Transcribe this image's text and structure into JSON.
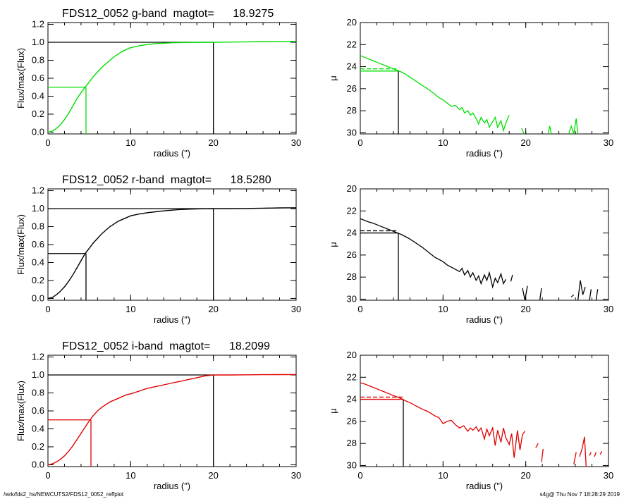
{
  "footer": {
    "left": "/wrk/fds2_hs/NEWCUTS2/FDS12_0052_reffplot",
    "right": "s4g@  Thu Nov  7 18:28:29 2019"
  },
  "chart_data": [
    {
      "id": "g-growth",
      "type": "line",
      "title": "FDS12_0052 g-band  magtot=      18.9275",
      "xlabel": "radius (\")",
      "ylabel": "Flux/max(Flux)",
      "xlim": [
        0,
        30
      ],
      "ylim": [
        -0.02,
        1.22
      ],
      "xticks": [
        "0",
        "10",
        "20",
        "30"
      ],
      "yticks": [
        "0.0",
        "0.2",
        "0.4",
        "0.6",
        "0.8",
        "1.0",
        "1.2"
      ],
      "color": "#00e000",
      "x": [
        0,
        0.5,
        1,
        1.5,
        2,
        2.5,
        3,
        3.5,
        4,
        4.5,
        5,
        5.5,
        6,
        6.5,
        7,
        7.5,
        8,
        8.5,
        9,
        9.5,
        10,
        11,
        12,
        13,
        14,
        15,
        16,
        17,
        18,
        19,
        20,
        22,
        24,
        26,
        28,
        30
      ],
      "y": [
        0,
        0.01,
        0.04,
        0.08,
        0.14,
        0.21,
        0.29,
        0.37,
        0.44,
        0.5,
        0.56,
        0.62,
        0.67,
        0.72,
        0.76,
        0.8,
        0.84,
        0.87,
        0.9,
        0.92,
        0.94,
        0.96,
        0.975,
        0.985,
        0.99,
        0.995,
        0.997,
        0.998,
        0.999,
        1.0,
        1.0,
        1.003,
        1.005,
        1.008,
        1.01,
        1.01
      ],
      "r_total": 20,
      "r_half": 4.6,
      "half_level": 0.5,
      "total_level": 1.0
    },
    {
      "id": "g-mu",
      "type": "line",
      "xlabel": "radius (\")",
      "ylabel": "μ",
      "xlim": [
        0,
        30
      ],
      "ylim": [
        30.1,
        20
      ],
      "xticks": [
        "0",
        "10",
        "20",
        "30"
      ],
      "yticks": [
        "20",
        "22",
        "24",
        "26",
        "28",
        "30"
      ],
      "color": "#00e000",
      "segments": [
        {
          "x": [
            0,
            0.5,
            1,
            1.5,
            2,
            2.5,
            3,
            3.5,
            4,
            4.5,
            5,
            5.5,
            6,
            6.5,
            7,
            7.5,
            8,
            8.5,
            9,
            9.5,
            10,
            10.5,
            11,
            11.5,
            12,
            12.3,
            12.6,
            13,
            13.3,
            13.6,
            14,
            14.3,
            14.6,
            15,
            15.3,
            15.6,
            16,
            16.3,
            16.6,
            17,
            17.3,
            17.6,
            18
          ],
          "y": [
            23.0,
            23.15,
            23.3,
            23.45,
            23.6,
            23.75,
            23.9,
            24.05,
            24.2,
            24.35,
            24.5,
            24.7,
            24.95,
            25.2,
            25.45,
            25.7,
            25.95,
            26.2,
            26.5,
            26.8,
            27.0,
            27.3,
            27.6,
            27.5,
            27.9,
            27.7,
            28.2,
            28.0,
            28.4,
            28.2,
            28.7,
            29.2,
            28.6,
            29.1,
            28.8,
            29.5,
            29.0,
            28.6,
            29.5,
            28.9,
            29.8,
            29.1,
            28.4
          ]
        },
        {
          "x": [
            19.5,
            19.8
          ],
          "y": [
            29.6,
            30.1
          ]
        },
        {
          "x": [
            22.7,
            22.9,
            23.1
          ],
          "y": [
            30.1,
            29.4,
            30.1
          ]
        },
        {
          "x": [
            25.2,
            25.5,
            25.8,
            26.1,
            26.3
          ],
          "y": [
            30.1,
            29.4,
            30.1,
            28.7,
            30.1
          ]
        }
      ],
      "r_half": 4.6,
      "mu_eff": 24.4,
      "mu_mean_eff": 24.2
    },
    {
      "id": "r-growth",
      "type": "line",
      "title": "FDS12_0052 r-band  magtot=      18.5280",
      "xlabel": "radius (\")",
      "ylabel": "Flux/max(Flux)",
      "xlim": [
        0,
        30
      ],
      "ylim": [
        -0.02,
        1.22
      ],
      "xticks": [
        "0",
        "10",
        "20",
        "30"
      ],
      "yticks": [
        "0.0",
        "0.2",
        "0.4",
        "0.6",
        "0.8",
        "1.0",
        "1.2"
      ],
      "color": "#000000",
      "x": [
        0,
        0.5,
        1,
        1.5,
        2,
        2.5,
        3,
        3.5,
        4,
        4.5,
        5,
        5.5,
        6,
        6.5,
        7,
        7.5,
        8,
        8.5,
        9,
        9.5,
        10,
        11,
        12,
        13,
        14,
        15,
        16,
        17,
        18,
        19,
        20,
        22,
        24,
        26,
        28,
        30
      ],
      "y": [
        0,
        0.01,
        0.04,
        0.08,
        0.13,
        0.19,
        0.26,
        0.34,
        0.42,
        0.5,
        0.56,
        0.62,
        0.67,
        0.72,
        0.76,
        0.8,
        0.83,
        0.86,
        0.88,
        0.9,
        0.92,
        0.94,
        0.955,
        0.965,
        0.975,
        0.983,
        0.99,
        0.994,
        0.997,
        0.999,
        1.0,
        1.0,
        1.002,
        1.005,
        1.008,
        1.01
      ],
      "r_total": 20,
      "r_half": 4.6,
      "half_level": 0.5,
      "total_level": 1.0
    },
    {
      "id": "r-mu",
      "type": "line",
      "xlabel": "radius (\")",
      "ylabel": "μ",
      "xlim": [
        0,
        30
      ],
      "ylim": [
        30.1,
        20
      ],
      "xticks": [
        "0",
        "10",
        "20",
        "30"
      ],
      "yticks": [
        "20",
        "22",
        "24",
        "26",
        "28",
        "30"
      ],
      "color": "#000000",
      "segments": [
        {
          "x": [
            0,
            0.5,
            1,
            1.5,
            2,
            2.5,
            3,
            3.5,
            4,
            4.5,
            5,
            5.5,
            6,
            6.5,
            7,
            7.5,
            8,
            8.5,
            9,
            9.5,
            10,
            10.5,
            11,
            11.5,
            12,
            12.3,
            12.6,
            13,
            13.3,
            13.6,
            14,
            14.3,
            14.6,
            15,
            15.3,
            15.6,
            16,
            16.3,
            16.6,
            17,
            17.3,
            17.6
          ],
          "y": [
            22.7,
            22.85,
            23.0,
            23.1,
            23.25,
            23.4,
            23.55,
            23.7,
            23.85,
            24.0,
            24.15,
            24.35,
            24.55,
            24.8,
            25.05,
            25.3,
            25.6,
            25.9,
            26.2,
            26.4,
            26.6,
            26.9,
            27.1,
            27.3,
            27.5,
            27.2,
            27.8,
            27.4,
            28.0,
            27.6,
            28.3,
            27.9,
            28.6,
            27.8,
            28.3,
            27.6,
            28.9,
            28.1,
            28.5,
            27.7,
            28.6,
            28.2
          ]
        },
        {
          "x": [
            18.2,
            18.4
          ],
          "y": [
            28.4,
            27.8
          ]
        },
        {
          "x": [
            19.6,
            19.9,
            20.2
          ],
          "y": [
            29.0,
            30.1,
            28.8
          ]
        },
        {
          "x": [
            21.7,
            21.9
          ],
          "y": [
            30.1,
            29.0
          ]
        },
        {
          "x": [
            25.5,
            25.8
          ],
          "y": [
            29.8,
            29.6
          ]
        },
        {
          "x": [
            26.3,
            26.6,
            26.9,
            27.2
          ],
          "y": [
            30.1,
            28.3,
            29.6,
            28.9
          ]
        },
        {
          "x": [
            27.7,
            27.9
          ],
          "y": [
            30.1,
            29.1
          ]
        },
        {
          "x": [
            28.5,
            28.7
          ],
          "y": [
            30.1,
            29.1
          ]
        }
      ],
      "r_half": 4.6,
      "mu_eff": 24.0,
      "mu_mean_eff": 23.8
    },
    {
      "id": "i-growth",
      "type": "line",
      "title": "FDS12_0052 i-band  magtot=      18.2099",
      "xlabel": "radius (\")",
      "ylabel": "Flux/max(Flux)",
      "xlim": [
        0,
        30
      ],
      "ylim": [
        -0.02,
        1.22
      ],
      "xticks": [
        "0",
        "10",
        "20",
        "30"
      ],
      "yticks": [
        "0.0",
        "0.2",
        "0.4",
        "0.6",
        "0.8",
        "1.0",
        "1.2"
      ],
      "color": "#e00000",
      "x": [
        0,
        0.5,
        1,
        1.5,
        2,
        2.5,
        3,
        3.5,
        4,
        4.5,
        5,
        5.5,
        6,
        6.5,
        7,
        7.5,
        8,
        8.5,
        9,
        9.5,
        10,
        11,
        12,
        13,
        14,
        15,
        16,
        17,
        18,
        19,
        20,
        22,
        24,
        26,
        28,
        30
      ],
      "y": [
        0,
        0.01,
        0.03,
        0.06,
        0.1,
        0.15,
        0.21,
        0.28,
        0.35,
        0.42,
        0.49,
        0.55,
        0.6,
        0.64,
        0.67,
        0.7,
        0.72,
        0.74,
        0.76,
        0.78,
        0.79,
        0.82,
        0.85,
        0.87,
        0.89,
        0.91,
        0.93,
        0.95,
        0.97,
        0.99,
        1.0,
        1.0,
        1.002,
        1.003,
        1.004,
        1.005
      ],
      "r_total": 20,
      "r_half": 5.2,
      "half_level": 0.5,
      "total_level": 1.0
    },
    {
      "id": "i-mu",
      "type": "line",
      "xlabel": "radius (\")",
      "ylabel": "μ",
      "xlim": [
        0,
        30
      ],
      "ylim": [
        30.1,
        20
      ],
      "xticks": [
        "0",
        "10",
        "20",
        "30"
      ],
      "yticks": [
        "20",
        "22",
        "24",
        "26",
        "28",
        "30"
      ],
      "color": "#e00000",
      "segments": [
        {
          "x": [
            0,
            0.5,
            1,
            1.5,
            2,
            2.5,
            3,
            3.5,
            4,
            4.5,
            5,
            5.5,
            6,
            6.5,
            7,
            7.5,
            8,
            8.5,
            9,
            9.5,
            10,
            10.5,
            11,
            11.5,
            12,
            12.5,
            13,
            13.3,
            13.6,
            14,
            14.3,
            14.6,
            15,
            15.3,
            15.6,
            16,
            16.3,
            16.6,
            17,
            17.3,
            17.6,
            18,
            18.3,
            18.6,
            19,
            19.3,
            19.6,
            19.9
          ],
          "y": [
            22.5,
            22.6,
            22.75,
            22.9,
            23.05,
            23.2,
            23.35,
            23.5,
            23.65,
            23.8,
            23.95,
            24.15,
            24.3,
            24.5,
            24.7,
            24.9,
            25.05,
            25.25,
            25.5,
            25.65,
            26.2,
            26.0,
            25.9,
            26.3,
            26.6,
            26.4,
            26.9,
            26.6,
            26.8,
            26.5,
            26.9,
            26.6,
            27.6,
            26.7,
            27.3,
            26.6,
            28.2,
            26.8,
            27.9,
            26.6,
            27.5,
            28.1,
            27.1,
            29.3,
            26.8,
            28.6,
            27.2,
            26.9
          ]
        },
        {
          "x": [
            21.2,
            21.5
          ],
          "y": [
            28.4,
            28.0
          ]
        },
        {
          "x": [
            21.9,
            22.1
          ],
          "y": [
            29.7,
            28.5
          ]
        },
        {
          "x": [
            25.8,
            26.1
          ],
          "y": [
            29.9,
            28.8
          ]
        },
        {
          "x": [
            26.5,
            26.8,
            27.1,
            27.3
          ],
          "y": [
            29.2,
            28.5,
            27.4,
            30.1
          ]
        },
        {
          "x": [
            27.7,
            27.9
          ],
          "y": [
            29.1,
            28.8
          ]
        },
        {
          "x": [
            28.3,
            28.5
          ],
          "y": [
            29.2,
            28.8
          ]
        },
        {
          "x": [
            29.0,
            29.2
          ],
          "y": [
            29.0,
            28.7
          ]
        }
      ],
      "r_half": 5.2,
      "mu_eff": 24.0,
      "mu_mean_eff": 23.8
    }
  ]
}
